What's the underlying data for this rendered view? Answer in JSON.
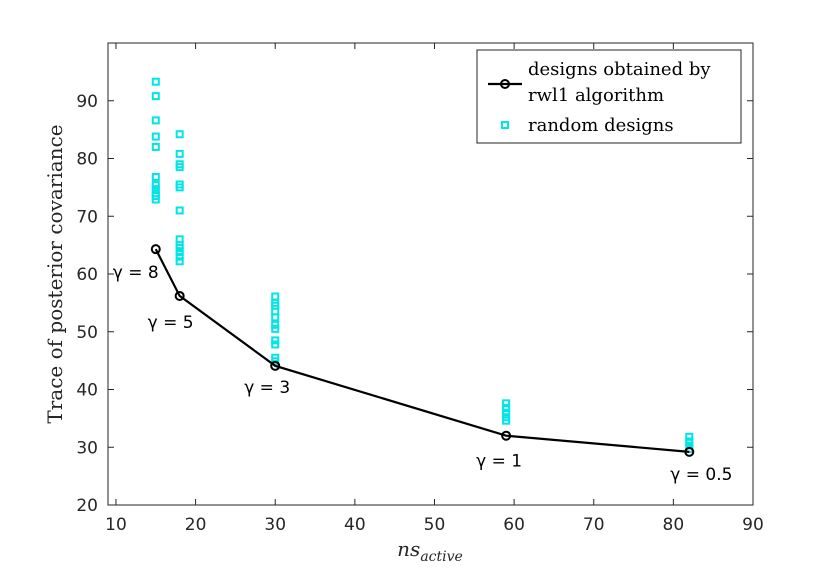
{
  "chart_data": {
    "type": "scatter",
    "title": "",
    "xlabel": "ns",
    "xlabel_sub": "active",
    "ylabel": "Trace of posterior covariance",
    "xlim": [
      9,
      90
    ],
    "ylim": [
      20,
      100
    ],
    "xticks": [
      10,
      20,
      30,
      40,
      50,
      60,
      70,
      80,
      90
    ],
    "yticks": [
      20,
      30,
      40,
      50,
      60,
      70,
      80,
      90
    ],
    "grid": false,
    "legend_position": "top-right",
    "series": [
      {
        "name": "designs obtained by rwl1 algorithm",
        "kind": "line-marker",
        "color": "#000000",
        "x": [
          15,
          18,
          30,
          59,
          82
        ],
        "y": [
          64.3,
          56.2,
          44.1,
          32.0,
          29.2
        ]
      },
      {
        "name": "random designs",
        "kind": "scatter",
        "color": "#00e5e5",
        "points": [
          [
            15,
            93.3
          ],
          [
            15,
            90.8
          ],
          [
            15,
            86.6
          ],
          [
            15,
            83.8
          ],
          [
            15,
            82.0
          ],
          [
            15,
            76.8
          ],
          [
            15,
            75.4
          ],
          [
            15,
            74.7
          ],
          [
            15,
            74.0
          ],
          [
            15,
            73.5
          ],
          [
            15,
            72.9
          ],
          [
            18,
            84.2
          ],
          [
            18,
            80.8
          ],
          [
            18,
            79.0
          ],
          [
            18,
            78.5
          ],
          [
            18,
            75.5
          ],
          [
            18,
            75.0
          ],
          [
            18,
            71.0
          ],
          [
            18,
            66.0
          ],
          [
            18,
            65.0
          ],
          [
            18,
            64.5
          ],
          [
            18,
            63.8
          ],
          [
            18,
            63.0
          ],
          [
            18,
            62.2
          ],
          [
            30,
            56.1
          ],
          [
            30,
            55.0
          ],
          [
            30,
            54.5
          ],
          [
            30,
            53.5
          ],
          [
            30,
            52.5
          ],
          [
            30,
            51.2
          ],
          [
            30,
            50.5
          ],
          [
            30,
            48.5
          ],
          [
            30,
            47.8
          ],
          [
            30,
            45.5
          ],
          [
            30,
            44.9
          ],
          [
            59,
            37.6
          ],
          [
            59,
            36.8
          ],
          [
            59,
            36.0
          ],
          [
            59,
            35.2
          ],
          [
            59,
            34.6
          ],
          [
            82,
            31.8
          ],
          [
            82,
            31.0
          ],
          [
            82,
            30.3
          ],
          [
            82,
            29.7
          ]
        ]
      }
    ],
    "annotations": [
      {
        "text": "γ = 8",
        "x": 15,
        "y": 64.3
      },
      {
        "text": "γ = 5",
        "x": 18,
        "y": 56.2
      },
      {
        "text": "γ = 3",
        "x": 30,
        "y": 44.1
      },
      {
        "text": "γ = 1",
        "x": 59,
        "y": 32.0
      },
      {
        "text": "γ = 0.5",
        "x": 82,
        "y": 29.2
      }
    ],
    "legend": {
      "line_label_1": "designs obtained by",
      "line_label_2": "rwl1 algorithm",
      "scatter_label": "random designs"
    }
  }
}
